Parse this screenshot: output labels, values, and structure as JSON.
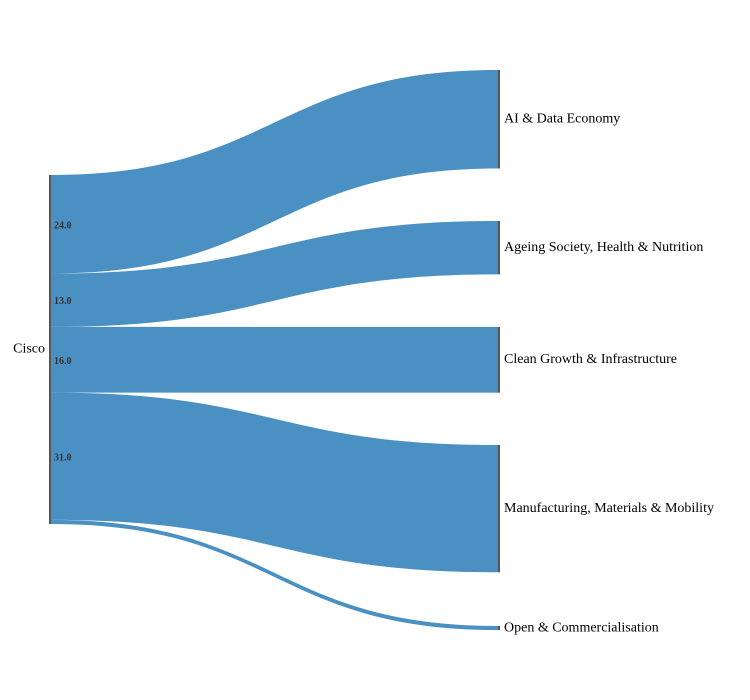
{
  "chart_data": {
    "type": "sankey",
    "source": {
      "name": "Cisco"
    },
    "flows": [
      {
        "target": "AI & Data Economy",
        "value": 24.0,
        "value_label": "24.0"
      },
      {
        "target": "Ageing Society, Health & Nutrition",
        "value": 13.0,
        "value_label": "13.0"
      },
      {
        "target": "Clean Growth & Infrastructure",
        "value": 16.0,
        "value_label": "16.0"
      },
      {
        "target": "Manufacturing, Materials & Mobility",
        "value": 31.0,
        "value_label": "31.0"
      },
      {
        "target": "Open & Commercialisation",
        "value": 1.0,
        "value_label": ""
      }
    ],
    "link_color": "#4a90c2",
    "node_color": "#555555"
  }
}
